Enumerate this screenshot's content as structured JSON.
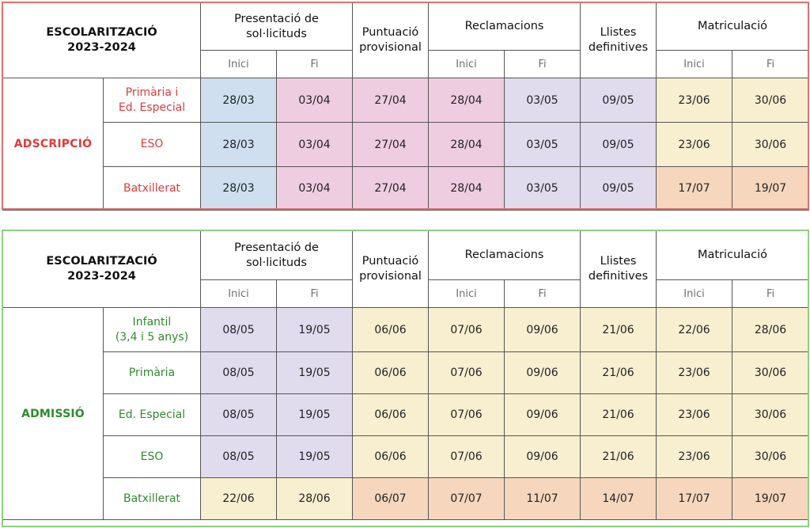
{
  "header": {
    "title": "ESCOLARITZACIÓ\n2023-2024",
    "presentacio": "Presentació de\nsol·licituds",
    "puntuacio": "Puntuació\nprovisional",
    "reclamacions": "Reclamacions",
    "llistes": "Llistes\ndefinitives",
    "matriculacio": "Matriculació",
    "inici": "Inici",
    "fi": "Fi"
  },
  "colors": {
    "blue": "#cfdff0",
    "pink": "#efcde1",
    "lavender": "#e1dbee",
    "yellow": "#f7efd0",
    "orange": "#f6d7bd",
    "adscripcio_accent": "#e03a3a",
    "admissio_accent": "#2e8b2e"
  },
  "adscripcio": {
    "label": "ADSCRIPCIÓ",
    "rows": [
      {
        "name": "Primària i\nEd. Especial",
        "cells": [
          {
            "v": "28/03",
            "c": "blue"
          },
          {
            "v": "03/04",
            "c": "pink"
          },
          {
            "v": "27/04",
            "c": "pink"
          },
          {
            "v": "28/04",
            "c": "pink"
          },
          {
            "v": "03/05",
            "c": "lavender"
          },
          {
            "v": "09/05",
            "c": "lavender"
          },
          {
            "v": "23/06",
            "c": "yellow"
          },
          {
            "v": "30/06",
            "c": "yellow"
          }
        ]
      },
      {
        "name": "ESO",
        "cells": [
          {
            "v": "28/03",
            "c": "blue"
          },
          {
            "v": "03/04",
            "c": "pink"
          },
          {
            "v": "27/04",
            "c": "pink"
          },
          {
            "v": "28/04",
            "c": "pink"
          },
          {
            "v": "03/05",
            "c": "lavender"
          },
          {
            "v": "09/05",
            "c": "lavender"
          },
          {
            "v": "23/06",
            "c": "yellow"
          },
          {
            "v": "30/06",
            "c": "yellow"
          }
        ]
      },
      {
        "name": "Batxillerat",
        "cells": [
          {
            "v": "28/03",
            "c": "blue"
          },
          {
            "v": "03/04",
            "c": "pink"
          },
          {
            "v": "27/04",
            "c": "pink"
          },
          {
            "v": "28/04",
            "c": "pink"
          },
          {
            "v": "03/05",
            "c": "lavender"
          },
          {
            "v": "09/05",
            "c": "lavender"
          },
          {
            "v": "17/07",
            "c": "orange"
          },
          {
            "v": "19/07",
            "c": "orange"
          }
        ]
      }
    ]
  },
  "admissio": {
    "label": "ADMISSIÓ",
    "rows": [
      {
        "name": "Infantil\n(3,4 i 5 anys)",
        "cells": [
          {
            "v": "08/05",
            "c": "lavender"
          },
          {
            "v": "19/05",
            "c": "lavender"
          },
          {
            "v": "06/06",
            "c": "yellow"
          },
          {
            "v": "07/06",
            "c": "yellow"
          },
          {
            "v": "09/06",
            "c": "yellow"
          },
          {
            "v": "21/06",
            "c": "yellow"
          },
          {
            "v": "22/06",
            "c": "yellow"
          },
          {
            "v": "28/06",
            "c": "yellow"
          }
        ]
      },
      {
        "name": "Primària",
        "cells": [
          {
            "v": "08/05",
            "c": "lavender"
          },
          {
            "v": "19/05",
            "c": "lavender"
          },
          {
            "v": "06/06",
            "c": "yellow"
          },
          {
            "v": "07/06",
            "c": "yellow"
          },
          {
            "v": "09/06",
            "c": "yellow"
          },
          {
            "v": "21/06",
            "c": "yellow"
          },
          {
            "v": "23/06",
            "c": "yellow"
          },
          {
            "v": "30/06",
            "c": "yellow"
          }
        ]
      },
      {
        "name": "Ed. Especial",
        "cells": [
          {
            "v": "08/05",
            "c": "lavender"
          },
          {
            "v": "19/05",
            "c": "lavender"
          },
          {
            "v": "06/06",
            "c": "yellow"
          },
          {
            "v": "07/06",
            "c": "yellow"
          },
          {
            "v": "09/06",
            "c": "yellow"
          },
          {
            "v": "21/06",
            "c": "yellow"
          },
          {
            "v": "23/06",
            "c": "yellow"
          },
          {
            "v": "30/06",
            "c": "yellow"
          }
        ]
      },
      {
        "name": "ESO",
        "cells": [
          {
            "v": "08/05",
            "c": "lavender"
          },
          {
            "v": "19/05",
            "c": "lavender"
          },
          {
            "v": "06/06",
            "c": "yellow"
          },
          {
            "v": "07/06",
            "c": "yellow"
          },
          {
            "v": "09/06",
            "c": "yellow"
          },
          {
            "v": "21/06",
            "c": "yellow"
          },
          {
            "v": "23/06",
            "c": "yellow"
          },
          {
            "v": "30/06",
            "c": "yellow"
          }
        ]
      },
      {
        "name": "Batxillerat",
        "cells": [
          {
            "v": "22/06",
            "c": "yellow"
          },
          {
            "v": "28/06",
            "c": "yellow"
          },
          {
            "v": "06/07",
            "c": "orange"
          },
          {
            "v": "07/07",
            "c": "orange"
          },
          {
            "v": "11/07",
            "c": "orange"
          },
          {
            "v": "14/07",
            "c": "orange"
          },
          {
            "v": "17/07",
            "c": "orange"
          },
          {
            "v": "19/07",
            "c": "orange"
          }
        ]
      }
    ]
  }
}
